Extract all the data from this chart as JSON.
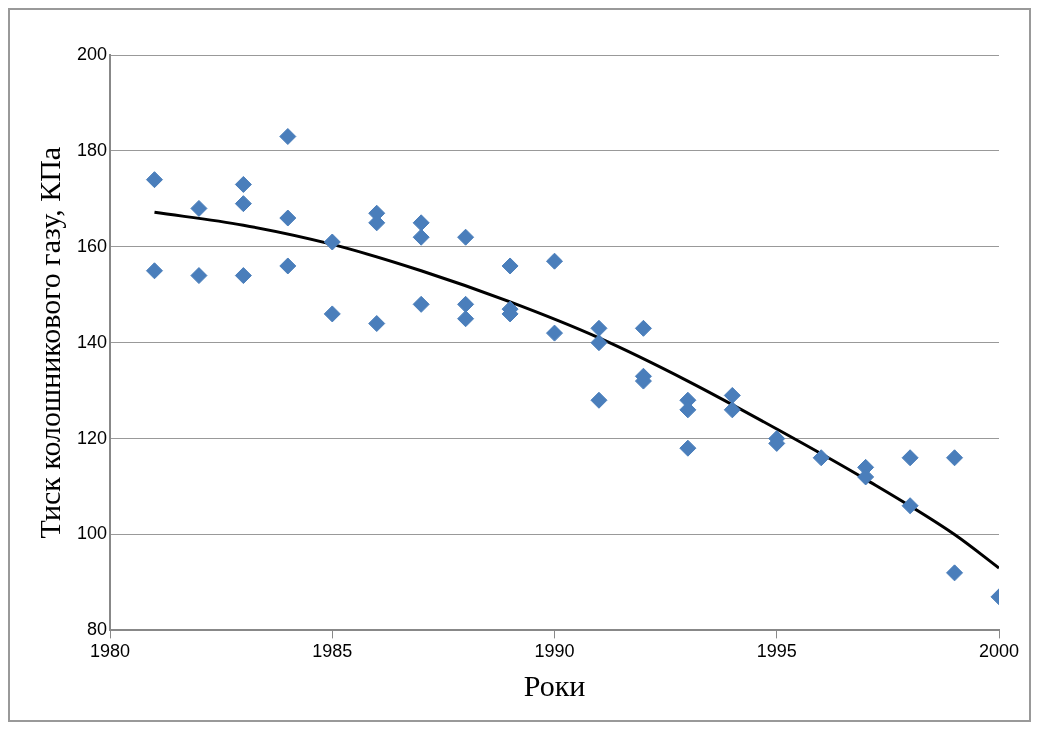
{
  "chart_data": {
    "type": "scatter",
    "xlabel": "Роки",
    "ylabel": "Тиск колошникового газу, КПа",
    "xlim": [
      1980,
      2000
    ],
    "xticks": [
      1980,
      1985,
      1990,
      1995,
      2000
    ],
    "ylim": [
      80,
      200
    ],
    "yticks": [
      80,
      100,
      120,
      140,
      160,
      180,
      200
    ],
    "grid": "y",
    "legend": false,
    "marker": "diamond",
    "series": [
      {
        "color": "#4a7ebb",
        "x": [
          1981,
          1981,
          1982,
          1982,
          1983,
          1983,
          1983,
          1984,
          1984,
          1984,
          1985,
          1985,
          1986,
          1986,
          1986,
          1987,
          1987,
          1987,
          1988,
          1988,
          1988,
          1989,
          1989,
          1989,
          1990,
          1990,
          1991,
          1991,
          1991,
          1992,
          1992,
          1992,
          1993,
          1993,
          1993,
          1994,
          1994,
          1995,
          1995,
          1996,
          1997,
          1997,
          1998,
          1998,
          1999,
          1999,
          2000
        ],
        "values": [
          174,
          155,
          168,
          154,
          173,
          169,
          154,
          183,
          166,
          156,
          161,
          146,
          167,
          165,
          144,
          165,
          162,
          148,
          162,
          148,
          145,
          156,
          147,
          146,
          157,
          142,
          143,
          140,
          128,
          143,
          133,
          132,
          128,
          126,
          118,
          129,
          126,
          120,
          119,
          116,
          114,
          112,
          116,
          106,
          116,
          92,
          87
        ]
      },
      {
        "type": "line",
        "color": "#000000",
        "marker": "none",
        "x": [
          1981,
          1983,
          1985,
          1987,
          1989,
          1991,
          1993,
          1995,
          1997,
          1999,
          2000
        ],
        "values": [
          167.2,
          164.5,
          160.5,
          155,
          148.5,
          141,
          132,
          122,
          111.5,
          100,
          93
        ]
      }
    ]
  }
}
